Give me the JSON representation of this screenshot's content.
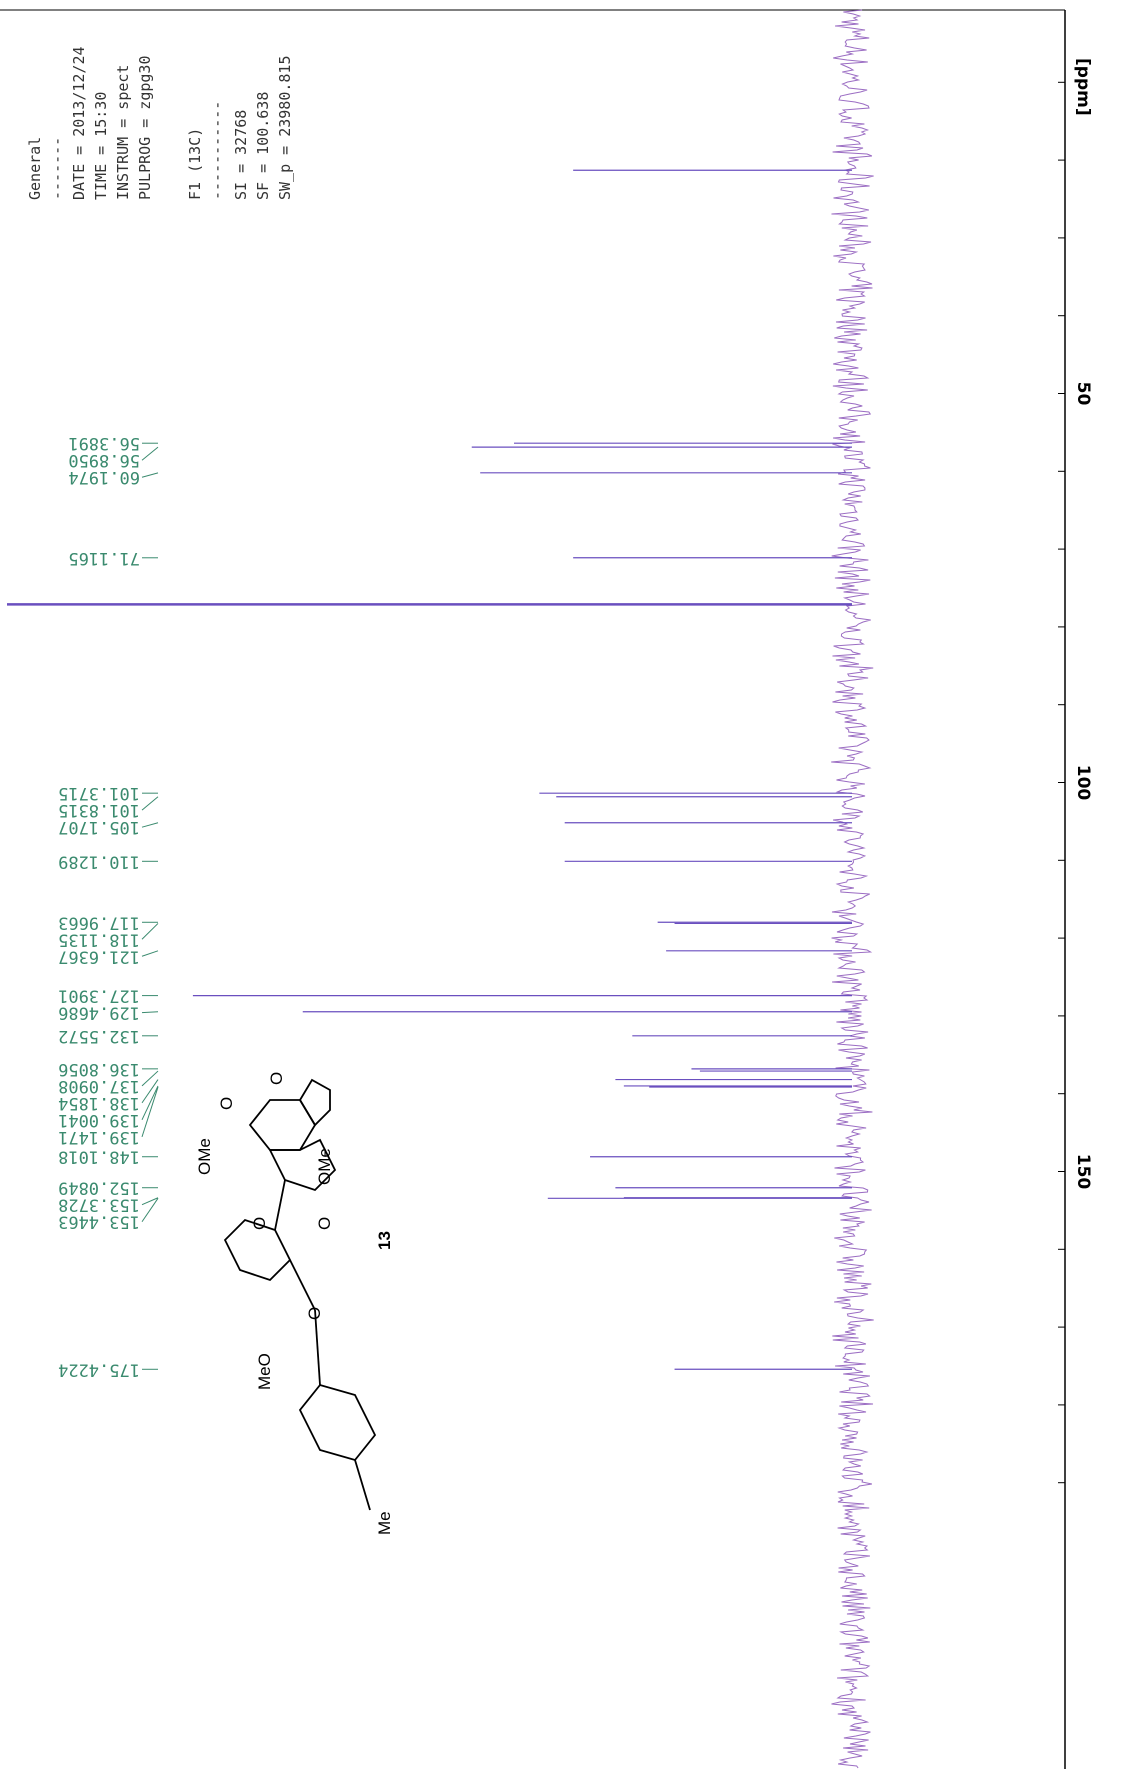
{
  "colors": {
    "spectrum": "#6a4fbf",
    "noise": "#8a54b8",
    "peak_label": "#3a8a6e",
    "axis": "#000000"
  },
  "parameters": {
    "header": "General",
    "dashes": "-------",
    "lines": [
      "DATE = 2013/12/24",
      "TIME = 15:30",
      "INSTRUM = spect",
      "PULPROG = zgpg30"
    ],
    "f1_header": "F1 (13C)",
    "f1_dashes": "-----------",
    "f1_lines": [
      "SI = 32768",
      "SF = 100.638",
      "SW_p = 23980.815"
    ]
  },
  "axis": {
    "unit_label": "[ppm]",
    "ticks": [
      "50",
      "100",
      "150"
    ]
  },
  "compound": {
    "number": "13",
    "labels": [
      "OMe",
      "OMe",
      "MeO",
      "Me",
      "O",
      "O",
      "O",
      "O",
      "O"
    ]
  },
  "chart_data": {
    "type": "line",
    "title": "",
    "xlabel": "[ppm]",
    "ylabel": "",
    "xlim": [
      -5,
      195
    ],
    "x_reversed": false,
    "tick_values": [
      50,
      100,
      150
    ],
    "peaks": [
      {
        "shift": 21.3,
        "intensity": 0.33,
        "label": ""
      },
      {
        "shift": 56.3891,
        "intensity": 0.4,
        "label": "56.3891"
      },
      {
        "shift": 56.895,
        "intensity": 0.45,
        "label": "56.8950"
      },
      {
        "shift": 60.1974,
        "intensity": 0.44,
        "label": "60.1974"
      },
      {
        "shift": 71.1165,
        "intensity": 0.33,
        "label": "71.1165"
      },
      {
        "shift": 77.1,
        "intensity": 1.0,
        "label": ""
      },
      {
        "shift": 101.3715,
        "intensity": 0.37,
        "label": "101.3715"
      },
      {
        "shift": 101.8315,
        "intensity": 0.35,
        "label": "101.8315"
      },
      {
        "shift": 105.1707,
        "intensity": 0.34,
        "label": "105.1707"
      },
      {
        "shift": 110.1289,
        "intensity": 0.34,
        "label": "110.1289"
      },
      {
        "shift": 117.9663,
        "intensity": 0.23,
        "label": "117.9663"
      },
      {
        "shift": 118.1135,
        "intensity": 0.21,
        "label": "118.1135"
      },
      {
        "shift": 121.6367,
        "intensity": 0.22,
        "label": "121.6367"
      },
      {
        "shift": 127.3901,
        "intensity": 0.78,
        "label": "127.3901"
      },
      {
        "shift": 129.4686,
        "intensity": 0.65,
        "label": "129.4686"
      },
      {
        "shift": 132.5572,
        "intensity": 0.26,
        "label": "132.5572"
      },
      {
        "shift": 136.8056,
        "intensity": 0.19,
        "label": "136.8056"
      },
      {
        "shift": 137.0908,
        "intensity": 0.18,
        "label": "137.0908"
      },
      {
        "shift": 138.1854,
        "intensity": 0.28,
        "label": "138.1854"
      },
      {
        "shift": 139.0041,
        "intensity": 0.27,
        "label": "139.0041"
      },
      {
        "shift": 139.1471,
        "intensity": 0.24,
        "label": "139.1471"
      },
      {
        "shift": 148.1018,
        "intensity": 0.31,
        "label": "148.1018"
      },
      {
        "shift": 152.0849,
        "intensity": 0.28,
        "label": "152.0849"
      },
      {
        "shift": 153.3728,
        "intensity": 0.27,
        "label": "153.3728"
      },
      {
        "shift": 153.4463,
        "intensity": 0.36,
        "label": "153.4463"
      },
      {
        "shift": 175.4224,
        "intensity": 0.21,
        "label": "175.4224"
      }
    ]
  }
}
